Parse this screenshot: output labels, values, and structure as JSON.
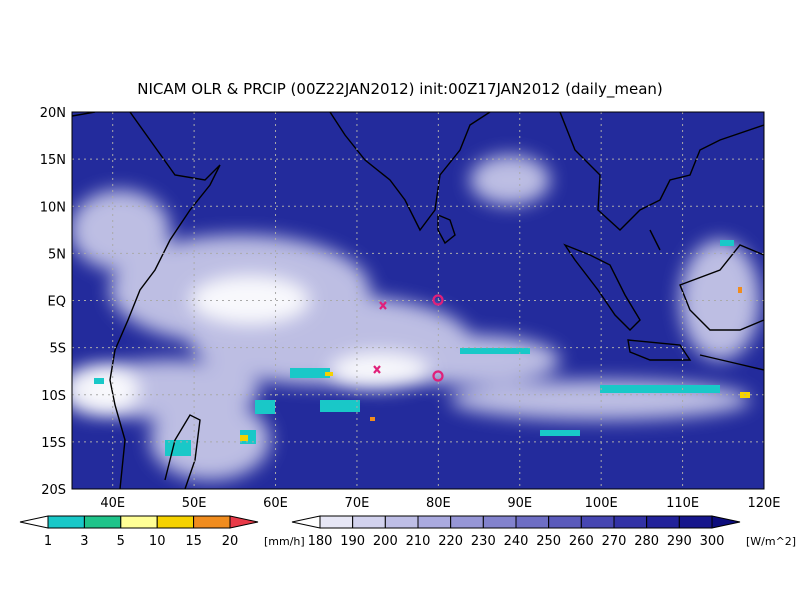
{
  "title": "NICAM OLR & PRCIP (00Z22JAN2012) init:00Z17JAN2012 (daily_mean)",
  "map": {
    "lon_labels": [
      "40E",
      "50E",
      "60E",
      "70E",
      "80E",
      "90E",
      "100E",
      "110E",
      "120E"
    ],
    "lat_labels": [
      "20N",
      "15N",
      "10N",
      "5N",
      "EQ",
      "5S",
      "10S",
      "15S",
      "20S"
    ],
    "background_color": "#232b9c"
  },
  "precip_bar": {
    "labels": [
      "1",
      "3",
      "5",
      "10",
      "15",
      "20"
    ],
    "unit": "[mm/h]",
    "colors": [
      "#ffffff",
      "#19c8c8",
      "#1fc48a",
      "#ffff96",
      "#f5d200",
      "#f08c1e",
      "#e83a48"
    ]
  },
  "olr_bar": {
    "labels": [
      "180",
      "190",
      "200",
      "210",
      "220",
      "230",
      "240",
      "250",
      "260",
      "270",
      "280",
      "290",
      "300"
    ],
    "unit": "[W/m^2]",
    "colors": [
      "#ffffff",
      "#e6e6f5",
      "#d2d2ee",
      "#bebee6",
      "#aaaadf",
      "#9696d6",
      "#8282cd",
      "#6e6ec4",
      "#5a5abb",
      "#4646b2",
      "#3232a6",
      "#22229a",
      "#16168c",
      "#0c0c7c"
    ]
  }
}
